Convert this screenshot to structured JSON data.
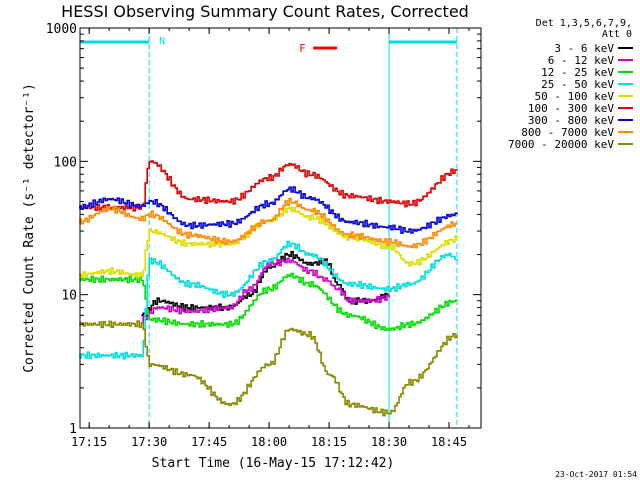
{
  "chart_data": {
    "type": "line",
    "title": "HESSI Observing Summary Count Rates, Corrected",
    "xlabel": "Start Time (16-May-15 17:12:42)",
    "ylabel": "Corrected Count Rate (s⁻¹ detector⁻¹)",
    "yscale": "log",
    "ylim": [
      1,
      1000
    ],
    "xlim": [
      "17:12:42",
      "18:53:00"
    ],
    "x_ticks": [
      "17:15",
      "17:30",
      "17:45",
      "18:00",
      "18:15",
      "18:30",
      "18:45"
    ],
    "y_ticks": [
      "1",
      "10",
      "100",
      "1000"
    ],
    "legend_header": [
      "Det 1,3,5,6,7,9,",
      "Att 0"
    ],
    "legend_position": "right",
    "annotations": {
      "night_marker": "N",
      "flare_marker": "F",
      "timestamp": "23-Oct-2017 01:54"
    },
    "night_intervals": [
      [
        "17:12:42",
        "17:30"
      ],
      [
        "18:30",
        "18:47"
      ]
    ],
    "flare_interval": [
      "18:11",
      "18:17"
    ],
    "series": [
      {
        "name": "3 - 6 keV",
        "color": "#000000",
        "x": [
          "17:28",
          "17:32",
          "17:40",
          "17:50",
          "17:55",
          "18:00",
          "18:05",
          "18:10",
          "18:14",
          "18:17",
          "18:20",
          "18:25",
          "18:30"
        ],
        "values": [
          7,
          9,
          8,
          8,
          10,
          16,
          20,
          17,
          18,
          12,
          9,
          9,
          10
        ]
      },
      {
        "name": "6 - 12 keV",
        "color": "#cc00cc",
        "x": [
          "17:28",
          "17:32",
          "17:40",
          "17:50",
          "17:55",
          "18:00",
          "18:05",
          "18:10",
          "18:14",
          "18:17",
          "18:20",
          "18:25",
          "18:30"
        ],
        "values": [
          6.5,
          8,
          7.5,
          8,
          11,
          17,
          18,
          15,
          13,
          11,
          9,
          9,
          9.5
        ]
      },
      {
        "name": "12 - 25 keV",
        "color": "#00dd00",
        "x": [
          "17:12",
          "17:28",
          "17:30",
          "17:40",
          "17:50",
          "18:00",
          "18:05",
          "18:10",
          "18:20",
          "18:30",
          "18:35",
          "18:47"
        ],
        "values": [
          13,
          13,
          6.5,
          6,
          6,
          11,
          14,
          12,
          7,
          5.5,
          6,
          9
        ]
      },
      {
        "name": "25 - 50 keV",
        "color": "#00dddd",
        "x": [
          "17:12",
          "17:28",
          "17:30",
          "17:40",
          "17:50",
          "18:00",
          "18:05",
          "18:10",
          "18:20",
          "18:30",
          "18:35",
          "18:45",
          "18:47"
        ],
        "values": [
          3.5,
          3.5,
          18,
          12,
          10,
          18,
          24,
          20,
          12,
          11,
          12,
          20,
          18
        ]
      },
      {
        "name": "50 - 100 keV",
        "color": "#dddd00",
        "x": [
          "17:12",
          "17:20",
          "17:28",
          "17:30",
          "17:40",
          "17:50",
          "18:00",
          "18:05",
          "18:10",
          "18:20",
          "18:30",
          "18:35",
          "18:47"
        ],
        "values": [
          14,
          15,
          14,
          30,
          24,
          24,
          36,
          44,
          38,
          27,
          23,
          17,
          26
        ]
      },
      {
        "name": "100 - 300 keV",
        "color": "#dd0000",
        "x": [
          "17:12",
          "17:28",
          "17:30",
          "17:40",
          "17:50",
          "18:00",
          "18:05",
          "18:10",
          "18:20",
          "18:30",
          "18:35",
          "18:47"
        ],
        "values": [
          45,
          45,
          100,
          52,
          50,
          75,
          95,
          80,
          55,
          50,
          48,
          85
        ]
      },
      {
        "name": "300 - 800 keV",
        "color": "#0000dd",
        "x": [
          "17:12",
          "17:20",
          "17:28",
          "17:30",
          "17:40",
          "17:50",
          "18:00",
          "18:05",
          "18:10",
          "18:20",
          "18:30",
          "18:35",
          "18:47"
        ],
        "values": [
          45,
          52,
          46,
          50,
          33,
          34,
          48,
          62,
          53,
          35,
          32,
          30,
          40
        ]
      },
      {
        "name": "800 - 7000 keV",
        "color": "#ff8800",
        "x": [
          "17:12",
          "17:20",
          "17:28",
          "17:30",
          "17:40",
          "17:50",
          "18:00",
          "18:05",
          "18:10",
          "18:20",
          "18:30",
          "18:35",
          "18:47"
        ],
        "values": [
          35,
          44,
          37,
          40,
          28,
          25,
          36,
          50,
          43,
          28,
          25,
          23,
          34
        ]
      },
      {
        "name": "7000 - 20000 keV",
        "color": "#888800",
        "x": [
          "17:12",
          "17:28",
          "17:30",
          "17:40",
          "17:50",
          "18:00",
          "18:05",
          "18:10",
          "18:15",
          "18:20",
          "18:30",
          "18:35",
          "18:47"
        ],
        "values": [
          6,
          6,
          3,
          2.5,
          1.5,
          3,
          5.5,
          5,
          2.5,
          1.5,
          1.3,
          2.2,
          5
        ]
      }
    ]
  }
}
